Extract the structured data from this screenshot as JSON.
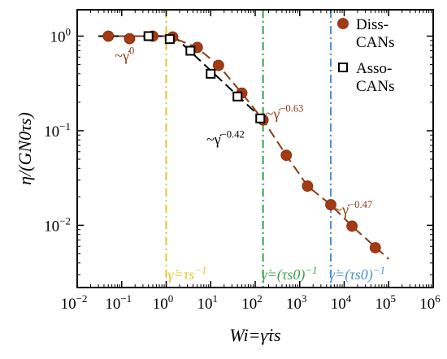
{
  "chart_data": {
    "type": "scatter",
    "title": "",
    "xlabel": "Wi=γ̇τs",
    "ylabel": "η/(GN0τs)",
    "x_scale": "log",
    "y_scale": "log",
    "xlim": [
      0.01,
      1000000
    ],
    "ylim": [
      0.0022,
      1.9
    ],
    "grid": false,
    "legend_position": "top-right",
    "x_tick_exponents": [
      "-2",
      "-1",
      "0",
      "1",
      "2",
      "3",
      "4",
      "5",
      "6"
    ],
    "y_tick_exponents": [
      "-2",
      "-1",
      "0"
    ],
    "series": [
      {
        "name": "Diss-CANs",
        "marker": "filled-circle",
        "color": "#a53a12",
        "x": [
          0.05,
          0.15,
          0.5,
          1.4,
          5,
          15,
          50,
          150,
          500,
          1500,
          5000,
          15000,
          50000
        ],
        "y": [
          1.0,
          0.94,
          1.0,
          0.98,
          0.76,
          0.49,
          0.25,
          0.13,
          0.055,
          0.026,
          0.0165,
          0.0098,
          0.0058
        ]
      },
      {
        "name": "Asso-CANs",
        "marker": "open-square",
        "color": "#000000",
        "x": [
          0.4,
          1.2,
          3.5,
          10,
          40,
          130
        ],
        "y": [
          1.0,
          0.93,
          0.7,
          0.4,
          0.23,
          0.135
        ]
      }
    ],
    "fit_lines": [
      {
        "color": "#000000",
        "x": [
          0.03,
          1.5,
          130
        ],
        "y": [
          1.0,
          1.0,
          0.14
        ]
      },
      {
        "color": "#8b3a0f",
        "x": [
          0.04,
          0.2,
          1.2,
          5,
          15,
          50,
          150,
          500,
          1500,
          5000,
          15000,
          100000
        ],
        "y": [
          1.0,
          1.0,
          1.0,
          0.75,
          0.49,
          0.25,
          0.13,
          0.055,
          0.026,
          0.0165,
          0.0098,
          0.0044
        ]
      }
    ],
    "vlines": [
      {
        "x": 1,
        "color": "#e2c62c",
        "label": "γ̇=τs−1"
      },
      {
        "x": 150,
        "color": "#3aa04a",
        "label": "γ̇=(τs0)−1"
      },
      {
        "x": 5000,
        "color": "#4a90d9",
        "label": "γ̇=(τs0)−1"
      }
    ],
    "annotations": [
      {
        "text": "~γ̇0",
        "color": "#8b3a0f",
        "x": 0.07,
        "y": 0.55
      },
      {
        "text": "~γ̇−0.42",
        "color": "#000000",
        "x": 8,
        "y": 0.072
      },
      {
        "text": "~γ̇−0.63",
        "color": "#8b3a0f",
        "x": 170,
        "y": 0.135
      },
      {
        "text": "~γ̇−0.47",
        "color": "#8b3a0f",
        "x": 6000,
        "y": 0.013
      }
    ]
  }
}
